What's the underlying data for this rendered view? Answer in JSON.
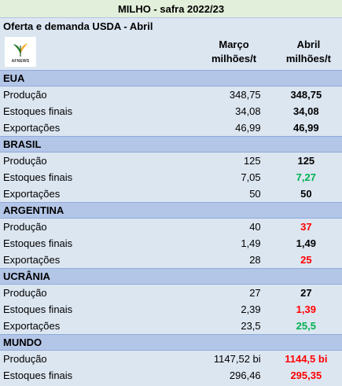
{
  "title": "MILHO - safra 2022/23",
  "subtitle": "Oferta e demanda USDA - Abril",
  "logo": {
    "text": "AFNEWS",
    "icon": "wheat-leaf-logo-icon"
  },
  "columns": {
    "marco_line1": "Março",
    "marco_line2": "milhões/t",
    "abril_line1": "Abril",
    "abril_line2": "milhões/t"
  },
  "colors": {
    "red": "#ff0000",
    "green": "#00b050",
    "section_bg": "#b4c6e7",
    "body_bg": "#dce6f1",
    "title_bg": "#e2efda"
  },
  "sections": [
    {
      "name": "EUA",
      "rows": [
        {
          "label": "Produção",
          "marco": "348,75",
          "abril": "348,75",
          "color": "black"
        },
        {
          "label": "Estoques finais",
          "marco": "34,08",
          "abril": "34,08",
          "color": "black"
        },
        {
          "label": "Exportações",
          "marco": "46,99",
          "abril": "46,99",
          "color": "black"
        }
      ]
    },
    {
      "name": "BRASIL",
      "rows": [
        {
          "label": "Produção",
          "marco": "125",
          "abril": "125",
          "color": "black"
        },
        {
          "label": "Estoques finais",
          "marco": "7,05",
          "abril": "7,27",
          "color": "green"
        },
        {
          "label": "Exportações",
          "marco": "50",
          "abril": "50",
          "color": "black"
        }
      ]
    },
    {
      "name": "ARGENTINA",
      "rows": [
        {
          "label": "Produção",
          "marco": "40",
          "abril": "37",
          "color": "red"
        },
        {
          "label": "Estoques finais",
          "marco": "1,49",
          "abril": "1,49",
          "color": "black"
        },
        {
          "label": "Exportações",
          "marco": "28",
          "abril": "25",
          "color": "red"
        }
      ]
    },
    {
      "name": "UCRÂNIA",
      "rows": [
        {
          "label": "Produção",
          "marco": "27",
          "abril": "27",
          "color": "black"
        },
        {
          "label": "Estoques finais",
          "marco": "2,39",
          "abril": "1,39",
          "color": "red"
        },
        {
          "label": "Exportações",
          "marco": "23,5",
          "abril": "25,5",
          "color": "green"
        }
      ]
    },
    {
      "name": "MUNDO",
      "rows": [
        {
          "label": "Produção",
          "marco": "1147,52 bi",
          "abril": "1144,5 bi",
          "color": "red"
        },
        {
          "label": "Estoques finais",
          "marco": "296,46",
          "abril": "295,35",
          "color": "red"
        }
      ]
    }
  ]
}
